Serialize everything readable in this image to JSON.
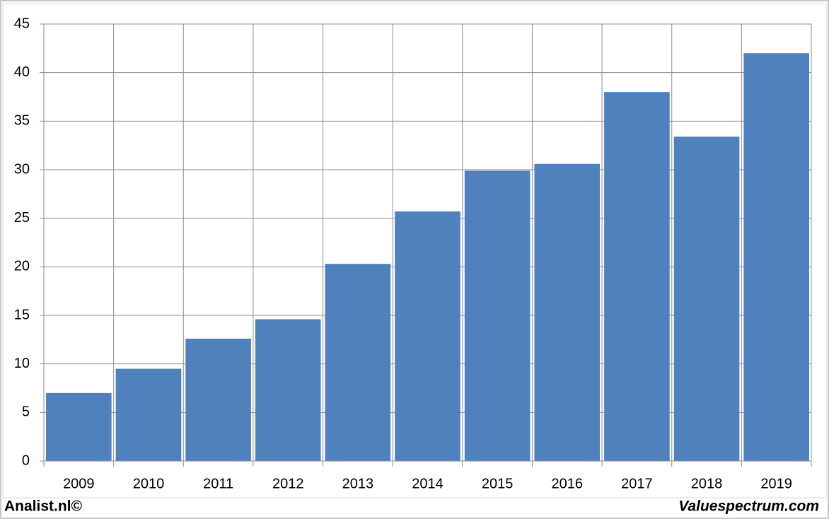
{
  "chart_data": {
    "type": "bar",
    "categories": [
      "2009",
      "2010",
      "2011",
      "2012",
      "2013",
      "2014",
      "2015",
      "2016",
      "2017",
      "2018",
      "2019"
    ],
    "values": [
      7.0,
      9.5,
      12.6,
      14.6,
      20.3,
      25.7,
      29.9,
      30.6,
      38.0,
      33.4,
      42.0
    ],
    "color": "#4f81bd",
    "ylim": [
      0,
      45
    ],
    "yticks": [
      0,
      5,
      10,
      15,
      20,
      25,
      30,
      35,
      40,
      45
    ],
    "grid": true
  },
  "footer": {
    "left": "Analist.nl©",
    "right": "Valuespectrum.com"
  }
}
